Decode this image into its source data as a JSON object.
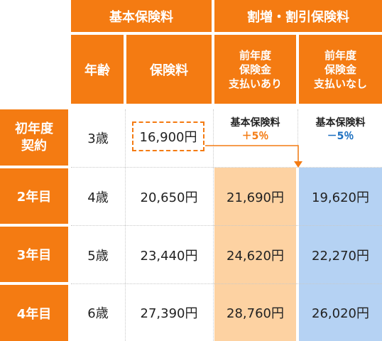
{
  "header": {
    "basic": "基本保険料",
    "change": "割増・割引保険料",
    "age": "年齢",
    "premium": "保険料",
    "with_claims": [
      "前年度",
      "保険金",
      "支払いあり"
    ],
    "without_claims": [
      "前年度",
      "保険金",
      "支払いなし"
    ]
  },
  "rows": [
    {
      "label": [
        "初年度",
        "契約"
      ],
      "age": "3歳",
      "premium": "16,900円",
      "with_claims": [
        "基本保険料",
        "＋5％"
      ],
      "without_claims": [
        "基本保険料",
        "－5％"
      ]
    },
    {
      "label": [
        "2年目"
      ],
      "age": "4歳",
      "premium": "20,650円",
      "with_claims": [
        "21,690円"
      ],
      "without_claims": [
        "19,620円"
      ]
    },
    {
      "label": [
        "3年目"
      ],
      "age": "5歳",
      "premium": "23,440円",
      "with_claims": [
        "24,620円"
      ],
      "without_claims": [
        "22,270円"
      ]
    },
    {
      "label": [
        "4年目"
      ],
      "age": "6歳",
      "premium": "27,390円",
      "with_claims": [
        "28,760円"
      ],
      "without_claims": [
        "26,020円"
      ]
    }
  ],
  "colors": {
    "orange": "#f47b12",
    "peach": "#fdd2a2",
    "blue": "#b5d2f3"
  },
  "icons": {
    "arrow": "arrow-down-icon"
  }
}
